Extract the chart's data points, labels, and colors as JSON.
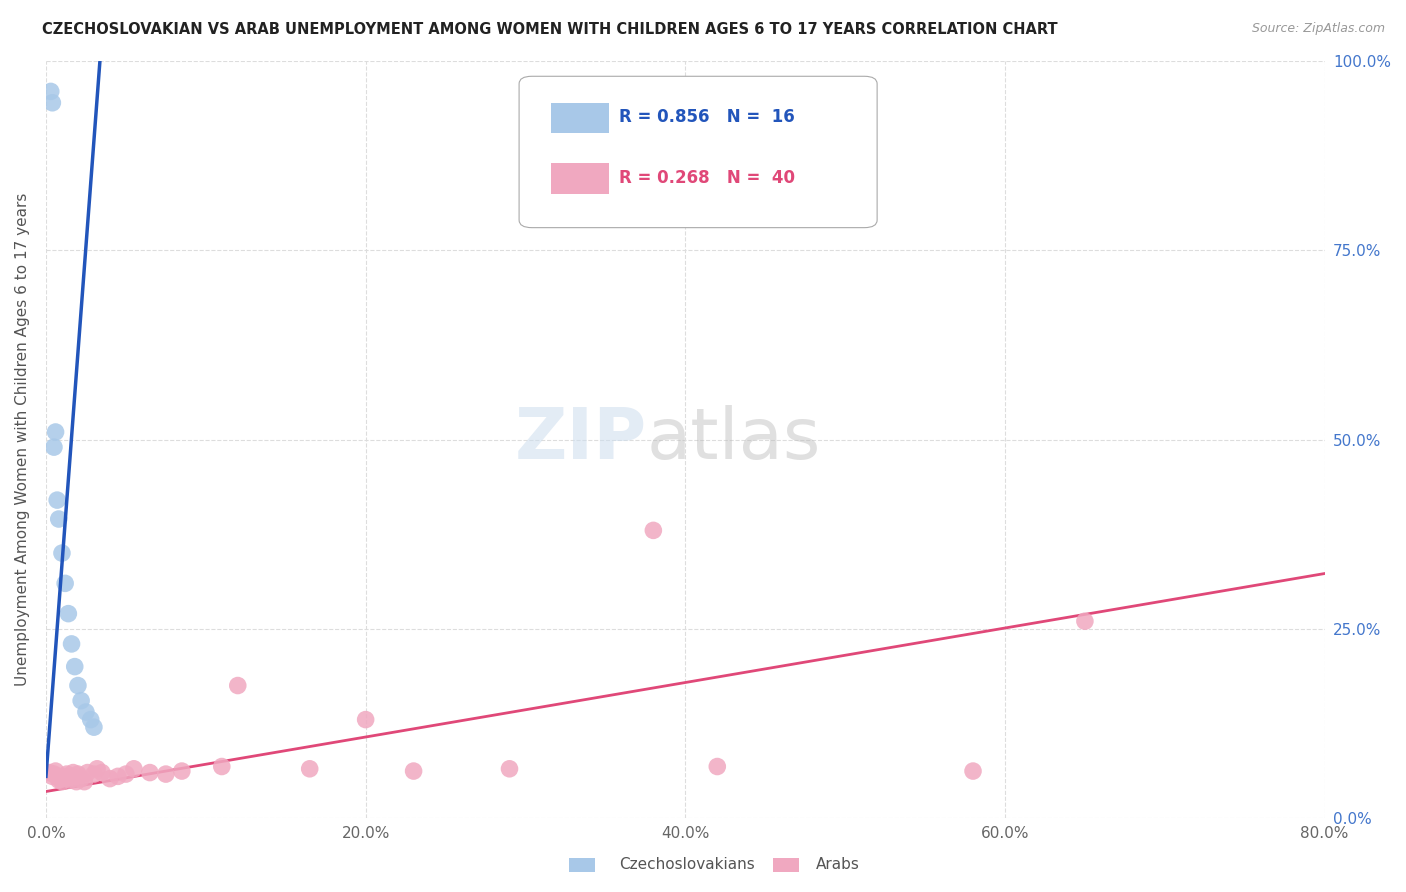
{
  "title": "CZECHOSLOVAKIAN VS ARAB UNEMPLOYMENT AMONG WOMEN WITH CHILDREN AGES 6 TO 17 YEARS CORRELATION CHART",
  "source": "Source: ZipAtlas.com",
  "ylabel": "Unemployment Among Women with Children Ages 6 to 17 years",
  "xlim": [
    0,
    0.8
  ],
  "ylim": [
    0,
    1.0
  ],
  "xtick_vals": [
    0.0,
    0.2,
    0.4,
    0.6,
    0.8
  ],
  "xtick_labels": [
    "0.0%",
    "20.0%",
    "40.0%",
    "60.0%",
    "80.0%"
  ],
  "ytick_vals": [
    0.0,
    0.25,
    0.5,
    0.75,
    1.0
  ],
  "ytick_labels": [
    "0.0%",
    "25.0%",
    "50.0%",
    "75.0%",
    "100.0%"
  ],
  "czech_color": "#a8c8e8",
  "arab_color": "#f0a8c0",
  "czech_line_color": "#2255bb",
  "arab_line_color": "#e04878",
  "czech_R": 0.856,
  "czech_N": 16,
  "arab_R": 0.268,
  "arab_N": 40,
  "legend_label_czech": "Czechoslovakians",
  "legend_label_arab": "Arabs",
  "watermark_zip": "ZIP",
  "watermark_atlas": "atlas",
  "background_color": "#ffffff",
  "grid_color": "#dddddd",
  "czech_x": [
    0.003,
    0.004,
    0.005,
    0.006,
    0.007,
    0.008,
    0.01,
    0.012,
    0.014,
    0.016,
    0.018,
    0.02,
    0.022,
    0.025,
    0.028,
    0.03
  ],
  "czech_y": [
    0.96,
    0.945,
    0.49,
    0.51,
    0.42,
    0.395,
    0.35,
    0.31,
    0.27,
    0.23,
    0.2,
    0.175,
    0.155,
    0.14,
    0.13,
    0.12
  ],
  "arab_x": [
    0.002,
    0.004,
    0.005,
    0.006,
    0.007,
    0.008,
    0.009,
    0.01,
    0.011,
    0.012,
    0.013,
    0.015,
    0.016,
    0.017,
    0.018,
    0.019,
    0.02,
    0.022,
    0.024,
    0.026,
    0.03,
    0.032,
    0.035,
    0.04,
    0.045,
    0.05,
    0.055,
    0.065,
    0.075,
    0.085,
    0.11,
    0.12,
    0.165,
    0.2,
    0.23,
    0.29,
    0.38,
    0.42,
    0.58,
    0.65
  ],
  "arab_y": [
    0.06,
    0.055,
    0.058,
    0.062,
    0.055,
    0.05,
    0.052,
    0.048,
    0.055,
    0.052,
    0.058,
    0.05,
    0.055,
    0.06,
    0.052,
    0.048,
    0.058,
    0.052,
    0.048,
    0.06,
    0.058,
    0.065,
    0.06,
    0.052,
    0.055,
    0.058,
    0.065,
    0.06,
    0.058,
    0.062,
    0.068,
    0.175,
    0.065,
    0.13,
    0.062,
    0.065,
    0.38,
    0.068,
    0.062,
    0.26
  ],
  "czech_trend_slope": 28.0,
  "czech_trend_intercept": 0.055,
  "arab_trend_slope": 0.36,
  "arab_trend_intercept": 0.035
}
